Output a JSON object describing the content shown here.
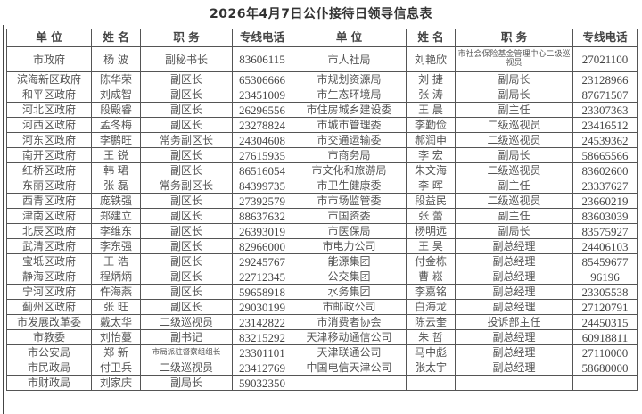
{
  "title": "2026年4月7日公仆接待日领导信息表",
  "headers": [
    "单 位",
    "姓 名",
    "职 务",
    "专线电话",
    "单 位",
    "姓 名",
    "职 务",
    "专线电话"
  ],
  "rows": [
    [
      [
        "市政府",
        "杨 波",
        "副秘书长",
        "83606115"
      ],
      [
        "市人社局",
        "刘艳欣",
        "市社会保险基金管理中心二级巡视员",
        "27021100"
      ]
    ],
    [
      [
        "滨海新区政府",
        "陈华荣",
        "副区长",
        "65306666"
      ],
      [
        "市规划资源局",
        "刘 捷",
        "副局长",
        "23128966"
      ]
    ],
    [
      [
        "和平区政府",
        "刘成智",
        "副区长",
        "23451009"
      ],
      [
        "市生态环境局",
        "张 涛",
        "副局长",
        "87671507"
      ]
    ],
    [
      [
        "河北区政府",
        "段殿睿",
        "副区长",
        "26296556"
      ],
      [
        "市住房城乡建设委",
        "王 晨",
        "副主任",
        "23307363"
      ]
    ],
    [
      [
        "河西区政府",
        "孟冬梅",
        "副区长",
        "23278824"
      ],
      [
        "市城市管理委",
        "李勤俭",
        "二级巡视员",
        "23416512"
      ]
    ],
    [
      [
        "河东区政府",
        "李鹏旺",
        "常务副区长",
        "24304608"
      ],
      [
        "市交通运输委",
        "郝润申",
        "二级巡视员",
        "24539362"
      ]
    ],
    [
      [
        "南开区政府",
        "王 锐",
        "副区长",
        "27615935"
      ],
      [
        "市商务局",
        "李 宏",
        "副局长",
        "58665566"
      ]
    ],
    [
      [
        "红桥区政府",
        "韩 珺",
        "副区长",
        "86516054"
      ],
      [
        "市文化和旅游局",
        "朱文海",
        "二级巡视员",
        "83602600"
      ]
    ],
    [
      [
        "东丽区政府",
        "张 磊",
        "常务副区长",
        "84399735"
      ],
      [
        "市卫生健康委",
        "李 晖",
        "副主任",
        "23337627"
      ]
    ],
    [
      [
        "西青区政府",
        "庞铁强",
        "副区长",
        "27392579"
      ],
      [
        "市市场监管委",
        "段益民",
        "二级巡视员",
        "23660219"
      ]
    ],
    [
      [
        "津南区政府",
        "郑建立",
        "副区长",
        "88637632"
      ],
      [
        "市国资委",
        "张 蕾",
        "副主任",
        "83603039"
      ]
    ],
    [
      [
        "北辰区政府",
        "李维东",
        "副区长",
        "26393019"
      ],
      [
        "市医保局",
        "杨明远",
        "副局长",
        "83575927"
      ]
    ],
    [
      [
        "武清区政府",
        "李东强",
        "副区长",
        "82966000"
      ],
      [
        "市电力公司",
        "王 昊",
        "副总经理",
        "24406103"
      ]
    ],
    [
      [
        "宝坻区政府",
        "王 浩",
        "副区长",
        "29245767"
      ],
      [
        "能源集团",
        "付金栋",
        "副总经理",
        "85459677"
      ]
    ],
    [
      [
        "静海区政府",
        "程炳炳",
        "副区长",
        "22712345"
      ],
      [
        "公交集团",
        "曹 崧",
        "副总经理",
        "96196"
      ]
    ],
    [
      [
        "宁河区政府",
        "仵海燕",
        "副区长",
        "59658918"
      ],
      [
        "水务集团",
        "李嘉铭",
        "副总经理",
        "23305538"
      ]
    ],
    [
      [
        "蓟州区政府",
        "张 旺",
        "副区长",
        "29030199"
      ],
      [
        "市邮政公司",
        "白海龙",
        "副总经理",
        "27120791"
      ]
    ],
    [
      [
        "市发展改革委",
        "戴太华",
        "二级巡视员",
        "23142822"
      ],
      [
        "市消费者协会",
        "陈云奎",
        "投诉部主任",
        "24450315"
      ]
    ],
    [
      [
        "市教委",
        "刘怡蔓",
        "副书记",
        "83215292"
      ],
      [
        "天津移动通信公司",
        "朱 哲",
        "副总经理",
        "60918811"
      ]
    ],
    [
      [
        "市公安局",
        "郑 新",
        "市局派驻督察组组长",
        "23301101"
      ],
      [
        "天津联通公司",
        "马中彪",
        "副总经理",
        "27110000"
      ]
    ],
    [
      [
        "市民政局",
        "付卫兵",
        "二级巡视员",
        "23412769"
      ],
      [
        "中国电信天津公司",
        "张太宇",
        "副总经理",
        "58680000"
      ]
    ],
    [
      [
        "市财政局",
        "刘家庆",
        "副局长",
        "59032350"
      ],
      [
        "",
        "",
        "",
        ""
      ]
    ]
  ]
}
